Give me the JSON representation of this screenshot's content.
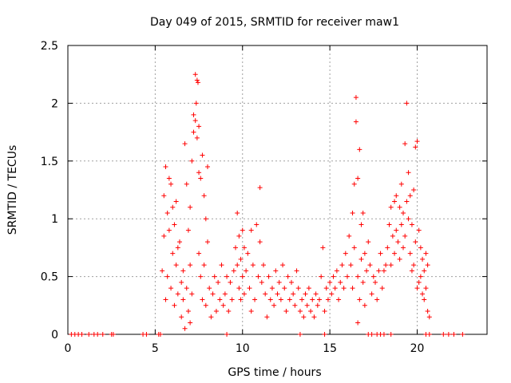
{
  "chart_data": {
    "type": "scatter",
    "title": "Day 049 of 2015, SRMTID for receiver maw1",
    "xlabel": "GPS time / hours",
    "ylabel": "SRMTID / TECUs",
    "xlim": [
      0,
      24
    ],
    "ylim": [
      0,
      2.5
    ],
    "x_ticks": [
      0,
      5,
      10,
      15,
      20
    ],
    "x_tick_labels": [
      "0",
      "5",
      "10",
      "15",
      "20"
    ],
    "y_ticks": [
      0,
      0.5,
      1,
      1.5,
      2,
      2.5
    ],
    "y_tick_labels": [
      "0",
      "0.5",
      "1",
      "1.5",
      "2",
      "2.5"
    ],
    "grid": true,
    "marker": "+",
    "series_color": "#ff0000",
    "series": [
      {
        "name": "SRMTID",
        "points": [
          [
            0.2,
            0
          ],
          [
            0.4,
            0
          ],
          [
            0.6,
            0
          ],
          [
            0.8,
            0
          ],
          [
            1.2,
            0
          ],
          [
            1.5,
            0
          ],
          [
            1.7,
            0
          ],
          [
            2.0,
            0
          ],
          [
            2.5,
            0
          ],
          [
            2.6,
            0
          ],
          [
            4.3,
            0
          ],
          [
            4.5,
            0
          ],
          [
            5.2,
            0
          ],
          [
            5.3,
            0
          ],
          [
            9.1,
            0
          ],
          [
            13.3,
            0
          ],
          [
            14.7,
            0
          ],
          [
            17.2,
            0
          ],
          [
            17.4,
            0
          ],
          [
            17.7,
            0
          ],
          [
            17.9,
            0
          ],
          [
            18.1,
            0
          ],
          [
            18.5,
            0
          ],
          [
            20.5,
            0
          ],
          [
            20.7,
            0
          ],
          [
            21.5,
            0
          ],
          [
            21.8,
            0
          ],
          [
            22.1,
            0
          ],
          [
            22.6,
            0
          ],
          [
            5.4,
            0.55
          ],
          [
            5.5,
            0.85
          ],
          [
            5.5,
            1.2
          ],
          [
            5.6,
            1.45
          ],
          [
            5.6,
            0.3
          ],
          [
            5.7,
            1.05
          ],
          [
            5.7,
            0.5
          ],
          [
            5.8,
            1.35
          ],
          [
            5.8,
            0.9
          ],
          [
            5.9,
            1.3
          ],
          [
            5.9,
            0.4
          ],
          [
            6.0,
            1.1
          ],
          [
            6.0,
            0.7
          ],
          [
            6.1,
            0.95
          ],
          [
            6.1,
            0.25
          ],
          [
            6.2,
            1.15
          ],
          [
            6.2,
            0.6
          ],
          [
            6.3,
            0.75
          ],
          [
            6.3,
            0.35
          ],
          [
            6.4,
            0.8
          ],
          [
            6.5,
            0.45
          ],
          [
            6.5,
            0.15
          ],
          [
            6.6,
            0.3
          ],
          [
            6.6,
            0.55
          ],
          [
            6.7,
            1.65
          ],
          [
            6.7,
            0.05
          ],
          [
            6.8,
            1.3
          ],
          [
            6.8,
            0.4
          ],
          [
            6.9,
            0.9
          ],
          [
            6.9,
            0.2
          ],
          [
            7.0,
            1.1
          ],
          [
            7.0,
            0.6
          ],
          [
            7.0,
            0.1
          ],
          [
            7.1,
            1.5
          ],
          [
            7.1,
            0.35
          ],
          [
            7.2,
            1.75
          ],
          [
            7.2,
            1.9
          ],
          [
            7.3,
            2.25
          ],
          [
            7.3,
            1.85
          ],
          [
            7.35,
            2.0
          ],
          [
            7.4,
            2.2
          ],
          [
            7.4,
            1.7
          ],
          [
            7.45,
            2.18
          ],
          [
            7.5,
            1.8
          ],
          [
            7.5,
            1.4
          ],
          [
            7.5,
            0.7
          ],
          [
            7.6,
            1.35
          ],
          [
            7.6,
            0.5
          ],
          [
            7.7,
            1.55
          ],
          [
            7.7,
            0.3
          ],
          [
            7.8,
            1.2
          ],
          [
            7.8,
            0.6
          ],
          [
            7.9,
            1.0
          ],
          [
            7.9,
            0.25
          ],
          [
            8.0,
            1.45
          ],
          [
            8.0,
            0.8
          ],
          [
            8.1,
            0.4
          ],
          [
            8.2,
            0.15
          ],
          [
            8.3,
            0.35
          ],
          [
            8.4,
            0.5
          ],
          [
            8.5,
            0.2
          ],
          [
            8.6,
            0.45
          ],
          [
            8.7,
            0.3
          ],
          [
            8.8,
            0.6
          ],
          [
            8.9,
            0.25
          ],
          [
            9.0,
            0.35
          ],
          [
            9.1,
            0.5
          ],
          [
            9.2,
            0.2
          ],
          [
            9.3,
            0.45
          ],
          [
            9.4,
            0.3
          ],
          [
            9.5,
            0.55
          ],
          [
            9.6,
            0.75
          ],
          [
            9.7,
            1.05
          ],
          [
            9.7,
            0.6
          ],
          [
            9.8,
            0.85
          ],
          [
            9.8,
            0.4
          ],
          [
            9.9,
            0.65
          ],
          [
            9.9,
            0.3
          ],
          [
            10.0,
            0.9
          ],
          [
            10.0,
            0.5
          ],
          [
            10.1,
            0.75
          ],
          [
            10.1,
            0.35
          ],
          [
            10.2,
            0.55
          ],
          [
            10.3,
            0.7
          ],
          [
            10.4,
            0.4
          ],
          [
            10.5,
            0.9
          ],
          [
            10.5,
            0.2
          ],
          [
            10.6,
            0.6
          ],
          [
            10.7,
            0.3
          ],
          [
            10.8,
            0.95
          ],
          [
            10.9,
            0.5
          ],
          [
            11.0,
            1.27
          ],
          [
            11.0,
            0.8
          ],
          [
            11.1,
            0.45
          ],
          [
            11.2,
            0.6
          ],
          [
            11.3,
            0.35
          ],
          [
            11.4,
            0.15
          ],
          [
            11.5,
            0.5
          ],
          [
            11.6,
            0.3
          ],
          [
            11.7,
            0.4
          ],
          [
            11.8,
            0.25
          ],
          [
            11.9,
            0.55
          ],
          [
            12.0,
            0.35
          ],
          [
            12.1,
            0.45
          ],
          [
            12.2,
            0.3
          ],
          [
            12.3,
            0.6
          ],
          [
            12.4,
            0.4
          ],
          [
            12.5,
            0.2
          ],
          [
            12.6,
            0.5
          ],
          [
            12.7,
            0.3
          ],
          [
            12.8,
            0.45
          ],
          [
            12.9,
            0.35
          ],
          [
            13.0,
            0.25
          ],
          [
            13.1,
            0.55
          ],
          [
            13.2,
            0.4
          ],
          [
            13.3,
            0.2
          ],
          [
            13.4,
            0.3
          ],
          [
            13.5,
            0.15
          ],
          [
            13.6,
            0.35
          ],
          [
            13.7,
            0.25
          ],
          [
            13.8,
            0.4
          ],
          [
            13.9,
            0.2
          ],
          [
            14.0,
            0.3
          ],
          [
            14.1,
            0.15
          ],
          [
            14.2,
            0.35
          ],
          [
            14.3,
            0.25
          ],
          [
            14.4,
            0.3
          ],
          [
            14.5,
            0.5
          ],
          [
            14.6,
            0.75
          ],
          [
            14.7,
            0.2
          ],
          [
            14.8,
            0.4
          ],
          [
            14.9,
            0.3
          ],
          [
            15.0,
            0.45
          ],
          [
            15.1,
            0.35
          ],
          [
            15.2,
            0.5
          ],
          [
            15.3,
            0.4
          ],
          [
            15.4,
            0.55
          ],
          [
            15.5,
            0.3
          ],
          [
            15.6,
            0.45
          ],
          [
            15.7,
            0.6
          ],
          [
            15.8,
            0.4
          ],
          [
            15.9,
            0.7
          ],
          [
            16.0,
            0.5
          ],
          [
            16.1,
            0.85
          ],
          [
            16.2,
            0.6
          ],
          [
            16.3,
            1.05
          ],
          [
            16.3,
            0.4
          ],
          [
            16.4,
            1.3
          ],
          [
            16.4,
            0.75
          ],
          [
            16.5,
            1.84
          ],
          [
            16.5,
            2.05
          ],
          [
            16.6,
            1.35
          ],
          [
            16.6,
            0.5
          ],
          [
            16.6,
            0.1
          ],
          [
            16.7,
            1.6
          ],
          [
            16.7,
            0.3
          ],
          [
            16.8,
            0.95
          ],
          [
            16.8,
            0.65
          ],
          [
            16.9,
            1.05
          ],
          [
            16.9,
            0.45
          ],
          [
            17.0,
            0.7
          ],
          [
            17.0,
            0.25
          ],
          [
            17.1,
            0.55
          ],
          [
            17.2,
            0.8
          ],
          [
            17.3,
            0.6
          ],
          [
            17.4,
            0.35
          ],
          [
            17.5,
            0.5
          ],
          [
            17.6,
            0.45
          ],
          [
            17.7,
            0.3
          ],
          [
            17.8,
            0.55
          ],
          [
            17.9,
            0.7
          ],
          [
            18.0,
            0.4
          ],
          [
            18.1,
            0.55
          ],
          [
            18.2,
            0.6
          ],
          [
            18.3,
            0.75
          ],
          [
            18.4,
            0.95
          ],
          [
            18.5,
            1.1
          ],
          [
            18.5,
            0.6
          ],
          [
            18.6,
            0.85
          ],
          [
            18.7,
            1.15
          ],
          [
            18.7,
            0.7
          ],
          [
            18.8,
            1.2
          ],
          [
            18.8,
            0.9
          ],
          [
            18.9,
            0.8
          ],
          [
            19.0,
            1.1
          ],
          [
            19.0,
            0.65
          ],
          [
            19.1,
            1.3
          ],
          [
            19.1,
            0.95
          ],
          [
            19.2,
            1.05
          ],
          [
            19.2,
            0.75
          ],
          [
            19.3,
            1.65
          ],
          [
            19.3,
            0.85
          ],
          [
            19.4,
            2.0
          ],
          [
            19.4,
            1.15
          ],
          [
            19.5,
            1.4
          ],
          [
            19.5,
            1.0
          ],
          [
            19.6,
            0.7
          ],
          [
            19.6,
            1.2
          ],
          [
            19.7,
            0.55
          ],
          [
            19.7,
            0.95
          ],
          [
            19.8,
            1.25
          ],
          [
            19.8,
            0.6
          ],
          [
            19.9,
            1.62
          ],
          [
            19.9,
            0.8
          ],
          [
            20.0,
            1.67
          ],
          [
            20.0,
            0.4
          ],
          [
            20.1,
            0.9
          ],
          [
            20.1,
            0.45
          ],
          [
            20.2,
            0.75
          ],
          [
            20.2,
            0.5
          ],
          [
            20.3,
            0.65
          ],
          [
            20.3,
            0.35
          ],
          [
            20.4,
            0.55
          ],
          [
            20.4,
            0.3
          ],
          [
            20.5,
            0.7
          ],
          [
            20.5,
            0.4
          ],
          [
            20.6,
            0.6
          ],
          [
            20.6,
            0.2
          ],
          [
            20.7,
            0.15
          ]
        ]
      }
    ]
  }
}
